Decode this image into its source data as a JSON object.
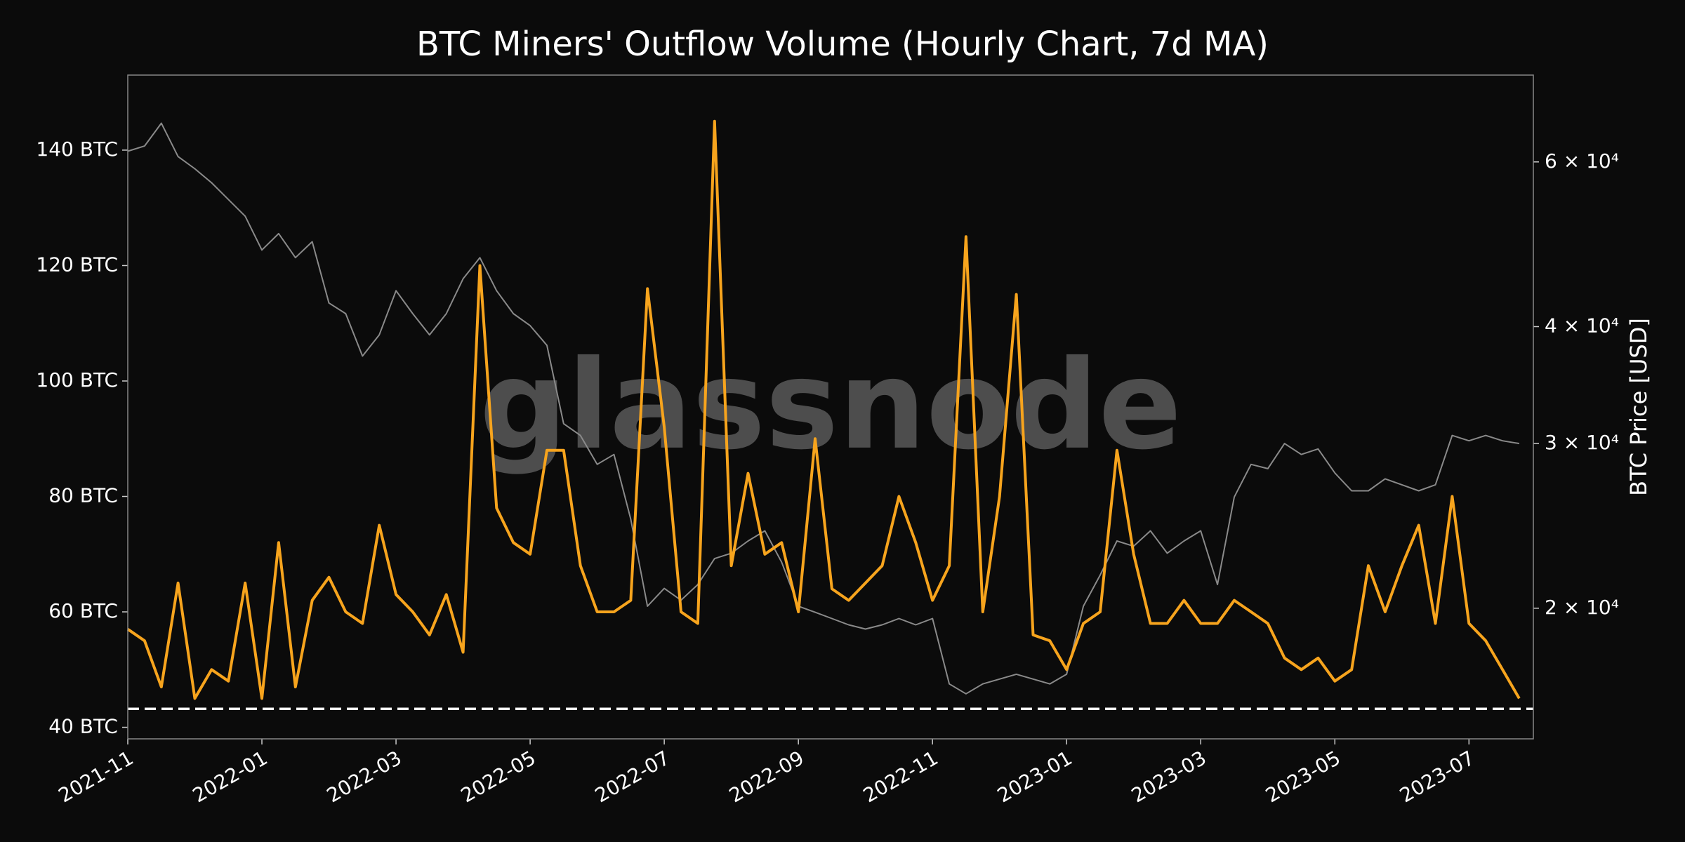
{
  "chart_data": {
    "type": "line",
    "title": "BTC Miners' Outflow Volume (Hourly Chart, 7d MA)",
    "watermark": "glassnode",
    "y2_label": "BTC Price [USD]",
    "x": [
      0,
      0.25,
      0.5,
      0.75,
      1,
      1.25,
      1.5,
      1.75,
      2,
      2.25,
      2.5,
      2.75,
      3,
      3.25,
      3.5,
      3.75,
      4,
      4.25,
      4.5,
      4.75,
      5,
      5.25,
      5.5,
      5.75,
      6,
      6.25,
      6.5,
      6.75,
      7,
      7.25,
      7.5,
      7.75,
      8,
      8.25,
      8.5,
      8.75,
      9,
      9.25,
      9.5,
      9.75,
      10,
      10.25,
      10.5,
      10.75,
      11,
      11.25,
      11.5,
      11.75,
      12,
      12.25,
      12.5,
      12.75,
      13,
      13.25,
      13.5,
      13.75,
      14,
      14.25,
      14.5,
      14.75,
      15,
      15.25,
      15.5,
      15.75,
      16,
      16.25,
      16.5,
      16.75,
      17,
      17.25,
      17.5,
      17.75,
      18,
      18.25,
      18.5,
      18.75,
      19,
      19.25,
      19.5,
      19.75,
      20,
      20.25,
      20.5,
      20.75
    ],
    "xlim": [
      0,
      20.96
    ],
    "xticks": [
      {
        "value": 0,
        "label": "2021-11"
      },
      {
        "value": 2,
        "label": "2022-01"
      },
      {
        "value": 4,
        "label": "2022-03"
      },
      {
        "value": 6,
        "label": "2022-05"
      },
      {
        "value": 8,
        "label": "2022-07"
      },
      {
        "value": 10,
        "label": "2022-09"
      },
      {
        "value": 12,
        "label": "2022-11"
      },
      {
        "value": 14,
        "label": "2023-01"
      },
      {
        "value": 16,
        "label": "2023-03"
      },
      {
        "value": 18,
        "label": "2023-05"
      },
      {
        "value": 20,
        "label": "2023-07"
      }
    ],
    "ylim": [
      38,
      153
    ],
    "yticks": [
      {
        "value": 40,
        "label": "40 BTC"
      },
      {
        "value": 60,
        "label": "60 BTC"
      },
      {
        "value": 80,
        "label": "80 BTC"
      },
      {
        "value": 100,
        "label": "100 BTC"
      },
      {
        "value": 120,
        "label": "120 BTC"
      },
      {
        "value": 140,
        "label": "140 BTC"
      }
    ],
    "y2lim": [
      14500,
      74300
    ],
    "y2_log": true,
    "y2ticks": [
      {
        "value": 20000,
        "label": "2 × 10⁴"
      },
      {
        "value": 30000,
        "label": "3 × 10⁴"
      },
      {
        "value": 40000,
        "label": "4 × 10⁴"
      },
      {
        "value": 60000,
        "label": "6 × 10⁴"
      }
    ],
    "reference_line": {
      "value": 43.2,
      "color": "#ffffff"
    },
    "series": [
      {
        "color": "#8a8a8a",
        "axis": "y2",
        "values": [
          61600,
          62400,
          66000,
          60800,
          59000,
          57000,
          54700,
          52500,
          48300,
          50300,
          47400,
          49300,
          42400,
          41300,
          37200,
          39200,
          43700,
          41300,
          39200,
          41300,
          45000,
          47400,
          43700,
          41300,
          40100,
          38200,
          31500,
          30600,
          28500,
          29200,
          24900,
          20100,
          21000,
          20400,
          21200,
          22600,
          22900,
          23600,
          24200,
          22400,
          20100,
          19800,
          19500,
          19200,
          19000,
          19200,
          19500,
          19200,
          19500,
          16600,
          16200,
          16600,
          16800,
          17000,
          16800,
          16600,
          17000,
          20100,
          21700,
          23600,
          23300,
          24200,
          22900,
          23600,
          24200,
          21200,
          26300,
          28500,
          28200,
          30000,
          29200,
          29600,
          27900,
          26700,
          26700,
          27500,
          27100,
          26700,
          27100,
          30600,
          30200,
          30600,
          30200,
          30000
        ]
      },
      {
        "color": "#f7a41d",
        "values": [
          57,
          55,
          47,
          65,
          45,
          50,
          48,
          65,
          45,
          72,
          47,
          62,
          66,
          60,
          58,
          75,
          63,
          60,
          56,
          63,
          53,
          120,
          78,
          72,
          70,
          88,
          88,
          68,
          60,
          60,
          62,
          116,
          92,
          60,
          58,
          145,
          68,
          84,
          70,
          72,
          60,
          90,
          64,
          62,
          65,
          68,
          80,
          72,
          62,
          68,
          125,
          60,
          80,
          115,
          56,
          55,
          50,
          58,
          60,
          88,
          70,
          58,
          58,
          62,
          58,
          58,
          62,
          60,
          58,
          52,
          50,
          52,
          48,
          50,
          68,
          60,
          68,
          75,
          58,
          80,
          58,
          55,
          50,
          45
        ]
      }
    ]
  }
}
